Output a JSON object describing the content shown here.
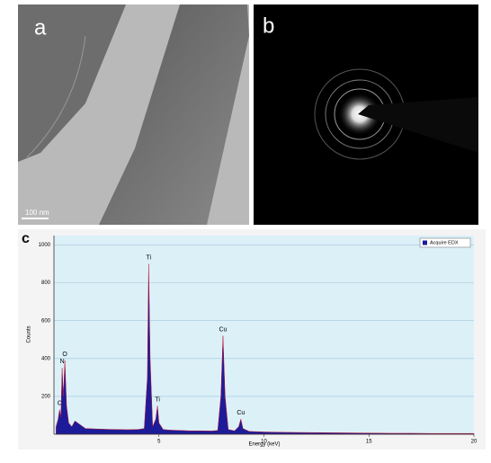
{
  "panels": [
    {
      "label": "a",
      "scale_bar": "100 nm"
    },
    {
      "label": "b"
    },
    {
      "label": "c"
    }
  ],
  "chart_data": {
    "type": "area",
    "x_label": "Energy (keV)",
    "y_label": "Counts",
    "x": [
      0.1,
      0.2,
      0.27,
      0.33,
      0.39,
      0.45,
      0.52,
      0.6,
      0.7,
      0.85,
      1.0,
      1.5,
      2,
      2.5,
      3,
      3.5,
      4,
      4.3,
      4.45,
      4.51,
      4.58,
      4.7,
      4.85,
      4.93,
      5.0,
      5.2,
      5.5,
      6,
      6.5,
      7,
      7.5,
      7.8,
      7.95,
      8.05,
      8.15,
      8.3,
      8.6,
      8.8,
      8.9,
      9.0,
      9.3,
      10,
      11,
      12,
      13,
      14,
      15,
      16,
      17,
      18,
      19,
      20
    ],
    "series": [
      {
        "name": "Acquire EDX",
        "color": "#1c1c9a",
        "values": [
          40,
          80,
          130,
          90,
          350,
          200,
          390,
          150,
          60,
          40,
          70,
          30,
          28,
          26,
          25,
          24,
          25,
          30,
          300,
          900,
          400,
          40,
          80,
          150,
          60,
          25,
          22,
          20,
          18,
          18,
          17,
          20,
          200,
          520,
          200,
          25,
          18,
          40,
          80,
          30,
          15,
          12,
          10,
          9,
          8,
          7,
          6,
          5,
          5,
          4,
          4,
          4
        ]
      }
    ],
    "annotations": [
      {
        "text": "C",
        "x": 0.27,
        "y": 130
      },
      {
        "text": "N",
        "x": 0.39,
        "y": 350
      },
      {
        "text": "O",
        "x": 0.52,
        "y": 390
      },
      {
        "text": "Ti",
        "x": 4.51,
        "y": 900
      },
      {
        "text": "Ti",
        "x": 4.93,
        "y": 150
      },
      {
        "text": "Cu",
        "x": 8.05,
        "y": 520
      },
      {
        "text": "Cu",
        "x": 8.9,
        "y": 80
      }
    ],
    "xlim": [
      0,
      20
    ],
    "ylim": [
      0,
      1050
    ],
    "xticks": [
      5,
      10,
      15,
      20
    ],
    "yticks": [
      200,
      400,
      600,
      800,
      1000
    ],
    "grid": true,
    "legend": "top-right"
  }
}
